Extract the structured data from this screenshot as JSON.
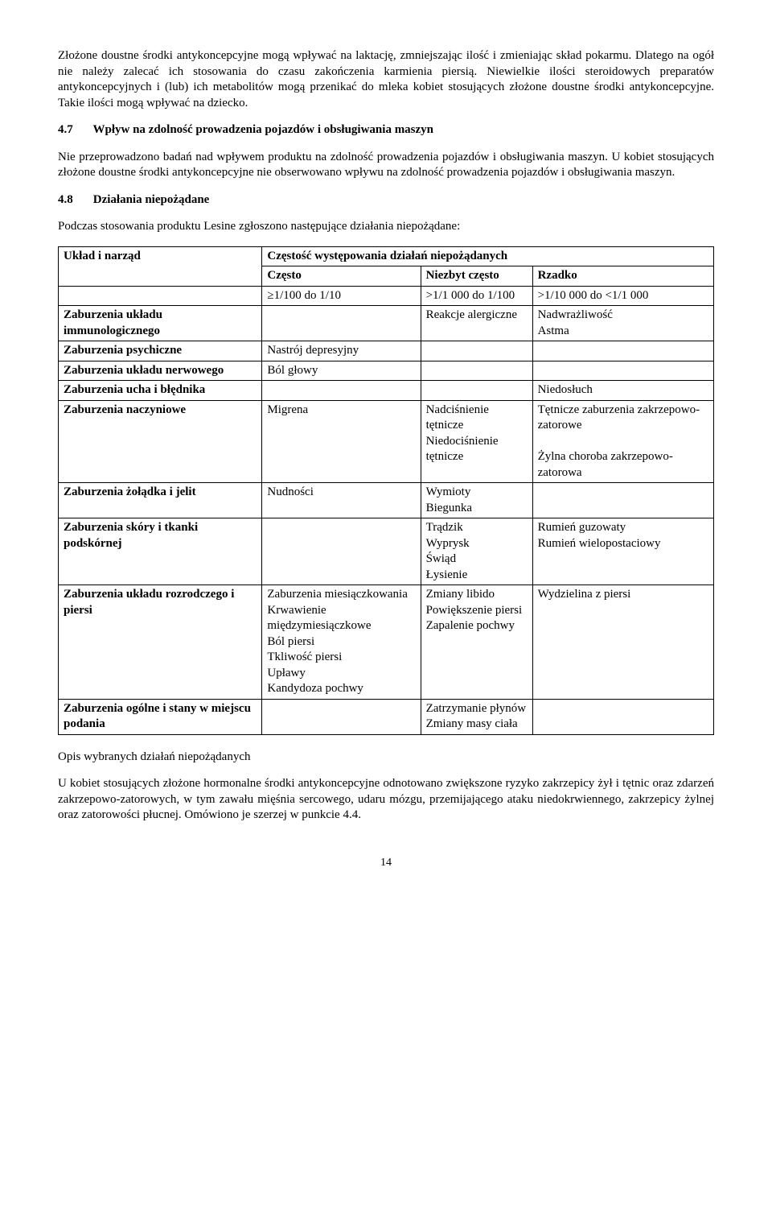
{
  "para1": "Złożone doustne środki antykoncepcyjne mogą wpływać na laktację, zmniejszając ilość i zmieniając skład pokarmu. Dlatego na ogół nie należy zalecać ich stosowania do czasu zakończenia karmienia piersią. Niewielkie ilości steroidowych preparatów antykoncepcyjnych i (lub) ich metabolitów mogą przenikać do mleka kobiet stosujących złożone doustne środki antykoncepcyjne. Takie ilości mogą wpływać na dziecko.",
  "sec47_num": "4.7",
  "sec47_title": "Wpływ na zdolność prowadzenia pojazdów i obsługiwania maszyn",
  "para47": "Nie przeprowadzono badań nad wpływem produktu na zdolność prowadzenia pojazdów i obsługiwania maszyn. U kobiet stosujących złożone doustne środki antykoncepcyjne nie obserwowano wpływu na zdolność prowadzenia pojazdów i obsługiwania maszyn.",
  "sec48_num": "4.8",
  "sec48_title": "Działania niepożądane",
  "para48_intro": "Podczas stosowania produktu Lesine zgłoszono następujące działania niepożądane:",
  "table": {
    "header_left": "Układ i narząd",
    "header_right": "Częstość występowania działań niepożądanych",
    "freq_cols": [
      "Często",
      "Niezbyt często",
      "Rzadko"
    ],
    "freq_vals": [
      "≥1/100 do 1/10",
      ">1/1 000 do 1/100",
      ">1/10 000 do <1/1 000"
    ],
    "rows": [
      {
        "sys": "Zaburzenia układu immunologicznego",
        "c1": "",
        "c2": "Reakcje alergiczne",
        "c3": "Nadwrażliwość\nAstma"
      },
      {
        "sys": "Zaburzenia psychiczne",
        "c1": "Nastrój depresyjny",
        "c2": "",
        "c3": ""
      },
      {
        "sys": "Zaburzenia układu nerwowego",
        "c1": "Ból głowy",
        "c2": "",
        "c3": ""
      },
      {
        "sys": "Zaburzenia ucha i błędnika",
        "c1": "",
        "c2": "",
        "c3": "Niedosłuch"
      },
      {
        "sys": "Zaburzenia naczyniowe",
        "c1": "Migrena",
        "c2": "Nadciśnienie tętnicze\nNiedociśnienie tętnicze",
        "c3": "Tętnicze zaburzenia zakrzepowo-zatorowe\n\nŻylna choroba zakrzepowo-zatorowa"
      },
      {
        "sys": "Zaburzenia żołądka i jelit",
        "c1": "Nudności",
        "c2": "Wymioty\nBiegunka",
        "c3": ""
      },
      {
        "sys": "Zaburzenia skóry i tkanki podskórnej",
        "c1": "",
        "c2": "Trądzik\nWyprysk\nŚwiąd\nŁysienie",
        "c3": "Rumień guzowaty\nRumień wielopostaciowy"
      },
      {
        "sys": "Zaburzenia układu rozrodczego i piersi",
        "c1": "Zaburzenia miesiączkowania\nKrwawienie międzymiesiączkowe\nBól piersi\nTkliwość piersi\nUpławy\nKandydoza pochwy",
        "c2": "Zmiany libido\nPowiększenie piersi\nZapalenie pochwy",
        "c3": "Wydzielina z piersi"
      },
      {
        "sys": "Zaburzenia ogólne i stany w miejscu podania",
        "c1": "",
        "c2": "Zatrzymanie płynów\nZmiany masy ciała",
        "c3": ""
      }
    ]
  },
  "desc_heading": "Opis wybranych działań niepożądanych",
  "desc_para": "U kobiet stosujących złożone hormonalne środki antykoncepcyjne odnotowano zwiększone ryzyko zakrzepicy żył i tętnic oraz zdarzeń zakrzepowo-zatorowych, w tym zawału mięśnia sercowego, udaru mózgu, przemijającego ataku niedokrwiennego, zakrzepicy żylnej oraz zatorowości płucnej. Omówiono je szerzej w punkcie 4.4.",
  "page_number": "14"
}
